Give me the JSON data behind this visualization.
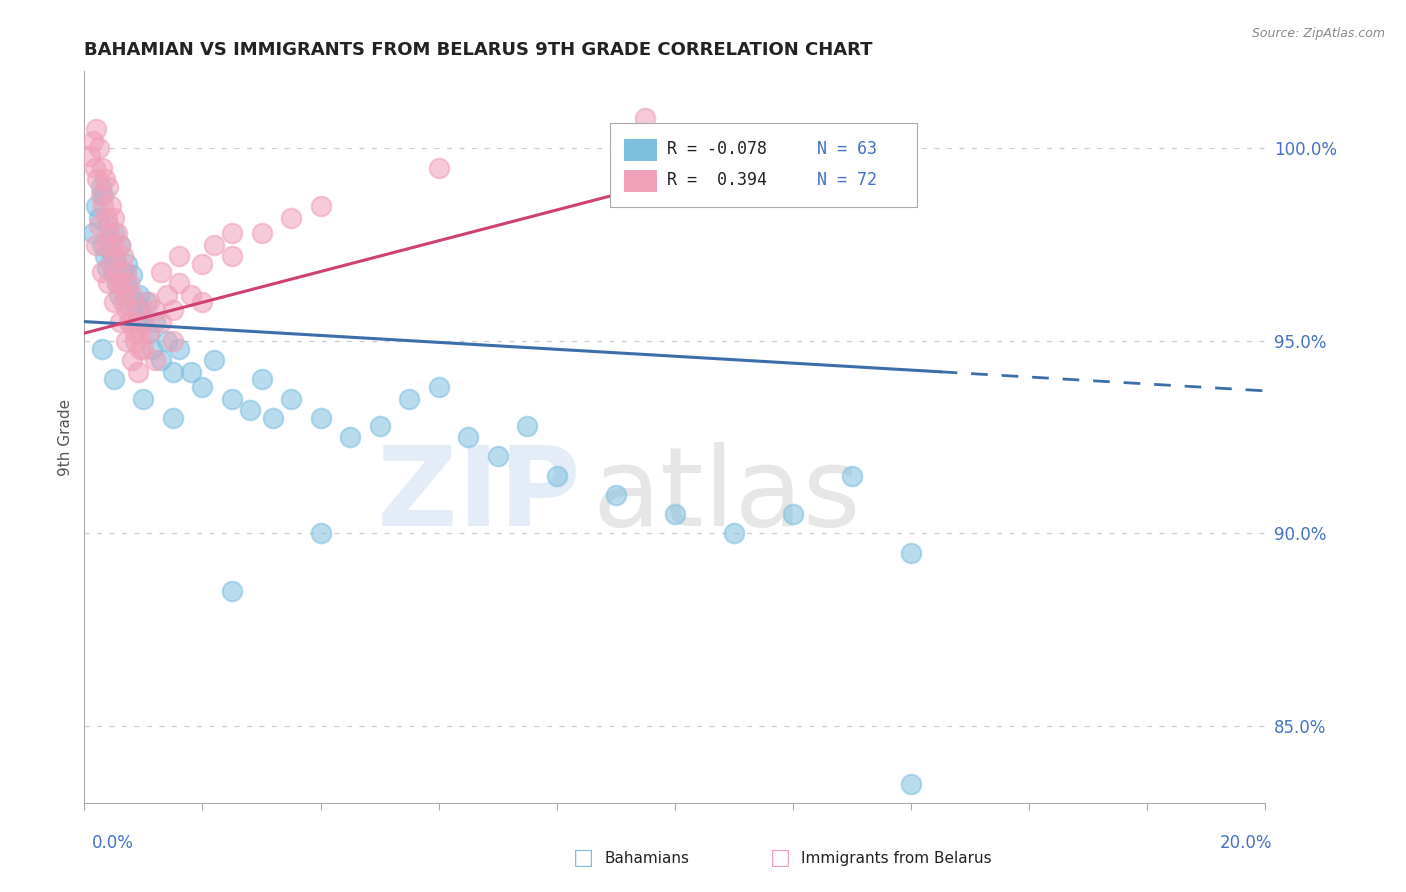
{
  "title": "BAHAMIAN VS IMMIGRANTS FROM BELARUS 9TH GRADE CORRELATION CHART",
  "source_text": "Source: ZipAtlas.com",
  "ylabel": "9th Grade",
  "xlim": [
    0.0,
    20.0
  ],
  "ylim": [
    83.0,
    102.0
  ],
  "yticks": [
    85.0,
    90.0,
    95.0,
    100.0
  ],
  "ytick_labels": [
    "85.0%",
    "90.0%",
    "95.0%",
    "100.0%"
  ],
  "blue_color": "#7fbfdf",
  "pink_color": "#f0a0b8",
  "blue_line_color": "#3a6faa",
  "pink_line_color": "#d04070",
  "blue_trend": [
    0.0,
    20.0,
    95.5,
    93.7
  ],
  "blue_solid_end": 14.5,
  "pink_trend": [
    0.0,
    9.5,
    95.2,
    99.0
  ],
  "blue_dots": [
    [
      0.15,
      97.8
    ],
    [
      0.2,
      98.5
    ],
    [
      0.25,
      98.2
    ],
    [
      0.28,
      99.0
    ],
    [
      0.3,
      97.5
    ],
    [
      0.32,
      98.8
    ],
    [
      0.35,
      97.2
    ],
    [
      0.38,
      96.9
    ],
    [
      0.4,
      98.0
    ],
    [
      0.42,
      97.6
    ],
    [
      0.45,
      97.3
    ],
    [
      0.48,
      96.8
    ],
    [
      0.5,
      97.8
    ],
    [
      0.52,
      97.1
    ],
    [
      0.55,
      96.5
    ],
    [
      0.58,
      96.2
    ],
    [
      0.6,
      97.5
    ],
    [
      0.65,
      96.8
    ],
    [
      0.7,
      96.5
    ],
    [
      0.72,
      97.0
    ],
    [
      0.75,
      96.2
    ],
    [
      0.78,
      95.9
    ],
    [
      0.8,
      96.7
    ],
    [
      0.85,
      96.0
    ],
    [
      0.9,
      95.5
    ],
    [
      0.92,
      96.2
    ],
    [
      0.95,
      95.8
    ],
    [
      1.0,
      95.5
    ],
    [
      1.05,
      96.0
    ],
    [
      1.1,
      95.2
    ],
    [
      1.15,
      94.8
    ],
    [
      1.2,
      95.5
    ],
    [
      1.3,
      94.5
    ],
    [
      1.4,
      95.0
    ],
    [
      1.5,
      94.2
    ],
    [
      1.6,
      94.8
    ],
    [
      1.8,
      94.2
    ],
    [
      2.0,
      93.8
    ],
    [
      2.2,
      94.5
    ],
    [
      2.5,
      93.5
    ],
    [
      2.8,
      93.2
    ],
    [
      3.0,
      94.0
    ],
    [
      3.2,
      93.0
    ],
    [
      3.5,
      93.5
    ],
    [
      4.0,
      93.0
    ],
    [
      4.5,
      92.5
    ],
    [
      5.0,
      92.8
    ],
    [
      5.5,
      93.5
    ],
    [
      6.0,
      93.8
    ],
    [
      6.5,
      92.5
    ],
    [
      7.0,
      92.0
    ],
    [
      7.5,
      92.8
    ],
    [
      8.0,
      91.5
    ],
    [
      9.0,
      91.0
    ],
    [
      10.0,
      90.5
    ],
    [
      11.0,
      90.0
    ],
    [
      12.0,
      90.5
    ],
    [
      13.0,
      91.5
    ],
    [
      14.0,
      89.5
    ],
    [
      0.3,
      94.8
    ],
    [
      0.5,
      94.0
    ],
    [
      1.0,
      93.5
    ],
    [
      1.5,
      93.0
    ],
    [
      2.5,
      88.5
    ],
    [
      4.0,
      90.0
    ],
    [
      14.0,
      83.5
    ]
  ],
  "pink_dots": [
    [
      0.1,
      99.8
    ],
    [
      0.15,
      100.2
    ],
    [
      0.18,
      99.5
    ],
    [
      0.2,
      100.5
    ],
    [
      0.22,
      99.2
    ],
    [
      0.25,
      100.0
    ],
    [
      0.28,
      98.8
    ],
    [
      0.3,
      99.5
    ],
    [
      0.32,
      98.5
    ],
    [
      0.35,
      99.2
    ],
    [
      0.38,
      98.2
    ],
    [
      0.4,
      99.0
    ],
    [
      0.42,
      97.8
    ],
    [
      0.45,
      98.5
    ],
    [
      0.48,
      97.5
    ],
    [
      0.5,
      98.2
    ],
    [
      0.52,
      97.2
    ],
    [
      0.55,
      97.8
    ],
    [
      0.58,
      96.8
    ],
    [
      0.6,
      97.5
    ],
    [
      0.62,
      96.5
    ],
    [
      0.65,
      97.2
    ],
    [
      0.68,
      96.2
    ],
    [
      0.7,
      96.8
    ],
    [
      0.72,
      95.8
    ],
    [
      0.75,
      96.5
    ],
    [
      0.78,
      95.5
    ],
    [
      0.8,
      96.2
    ],
    [
      0.85,
      95.2
    ],
    [
      0.9,
      95.8
    ],
    [
      0.95,
      94.8
    ],
    [
      1.0,
      95.5
    ],
    [
      1.1,
      95.2
    ],
    [
      1.2,
      95.8
    ],
    [
      1.3,
      95.5
    ],
    [
      1.4,
      96.2
    ],
    [
      1.5,
      95.8
    ],
    [
      1.6,
      96.5
    ],
    [
      1.8,
      96.2
    ],
    [
      2.0,
      97.0
    ],
    [
      2.2,
      97.5
    ],
    [
      2.5,
      97.2
    ],
    [
      3.0,
      97.8
    ],
    [
      3.5,
      98.2
    ],
    [
      0.2,
      97.5
    ],
    [
      0.3,
      96.8
    ],
    [
      0.4,
      96.5
    ],
    [
      0.5,
      96.0
    ],
    [
      0.6,
      95.5
    ],
    [
      0.7,
      95.0
    ],
    [
      0.8,
      94.5
    ],
    [
      0.9,
      94.2
    ],
    [
      1.0,
      94.8
    ],
    [
      1.2,
      94.5
    ],
    [
      1.5,
      95.0
    ],
    [
      2.0,
      96.0
    ],
    [
      0.25,
      98.0
    ],
    [
      0.35,
      97.5
    ],
    [
      0.45,
      97.0
    ],
    [
      0.55,
      96.5
    ],
    [
      0.65,
      96.0
    ],
    [
      0.75,
      95.5
    ],
    [
      0.85,
      95.0
    ],
    [
      0.95,
      95.2
    ],
    [
      1.1,
      96.0
    ],
    [
      1.3,
      96.8
    ],
    [
      1.6,
      97.2
    ],
    [
      2.5,
      97.8
    ],
    [
      4.0,
      98.5
    ],
    [
      6.0,
      99.5
    ],
    [
      9.5,
      100.8
    ]
  ]
}
